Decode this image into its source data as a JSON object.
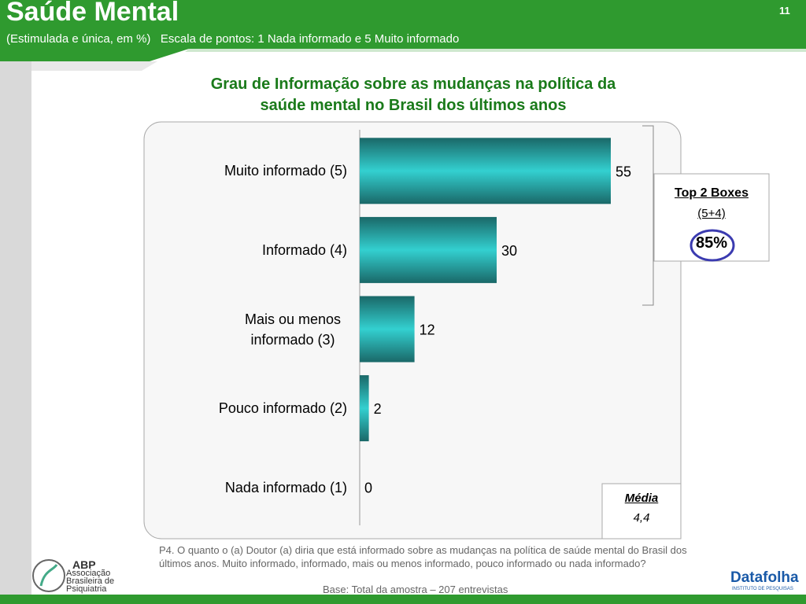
{
  "header": {
    "title": "Saúde Mental",
    "subtitle": "(Estimulada e única, em %)   Escala de pontos: 1 Nada informado e 5 Muito informado",
    "page": "11"
  },
  "chart_data": {
    "type": "bar",
    "orientation": "horizontal",
    "title": "Grau de Informação sobre as mudanças na política da saúde mental no Brasil dos últimos anos",
    "categories": [
      "Muito informado (5)",
      "Informado (4)",
      "Mais ou menos informado (3)",
      "Pouco informado (2)",
      "Nada informado (1)"
    ],
    "values": [
      55,
      30,
      12,
      2,
      0
    ],
    "color": "#2ecfcf",
    "xlim": [
      0,
      60
    ]
  },
  "top_boxes": {
    "title": "Top 2 Boxes",
    "subtitle": "(5+4)",
    "total": "85%"
  },
  "mean": {
    "title": "Média",
    "value": "4,4"
  },
  "footnote": "P4. O quanto o (a)  Doutor (a) diria que está informado sobre as mudanças na política de saúde mental do Brasil dos últimos anos. Muito informado, informado, mais ou menos informado, pouco informado ou nada informado?",
  "base": "Base: Total da amostra – 207 entrevistas",
  "logos": {
    "abp": "ABP",
    "abp_name": "Associação Brasileira de Psiquiatria",
    "datafolha": "Datafolha",
    "datafolha_sub": "INSTITUTO DE PESQUISAS"
  }
}
